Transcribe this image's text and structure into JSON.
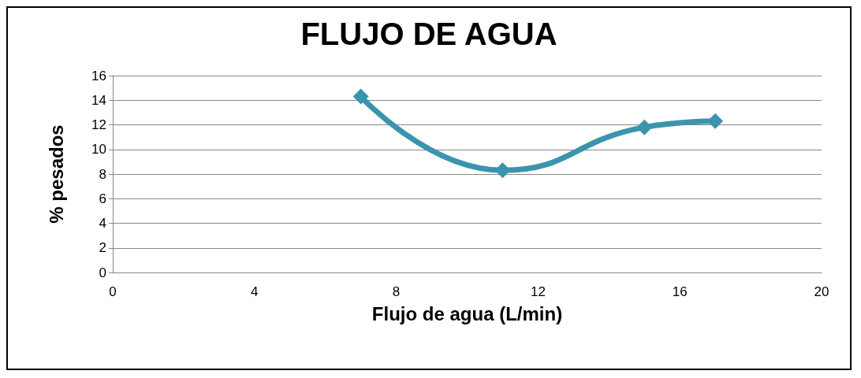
{
  "chart_data": {
    "type": "line",
    "title": "FLUJO DE AGUA",
    "xlabel": "Flujo de agua (L/min)",
    "ylabel": "% pesados",
    "x": [
      7,
      11,
      15,
      17
    ],
    "series": [
      {
        "color": "#3b94ae",
        "values": [
          14.3,
          8.3,
          11.8,
          12.3
        ]
      }
    ],
    "xlim": [
      0,
      20
    ],
    "xticks": [
      0,
      4,
      8,
      12,
      16,
      20
    ],
    "ylim": [
      0,
      16
    ],
    "yticks": [
      0,
      2,
      4,
      6,
      8,
      10,
      12,
      14,
      16
    ],
    "grid": "y",
    "marker": "diamond",
    "line_style": "solid"
  }
}
